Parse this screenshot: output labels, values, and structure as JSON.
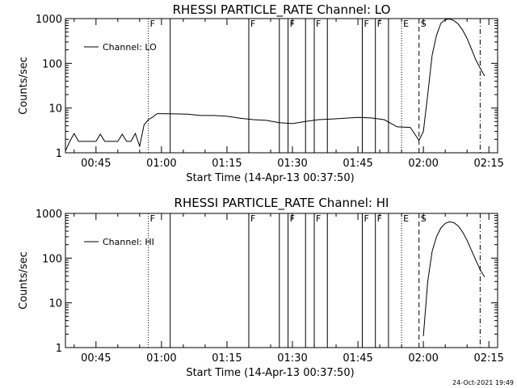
{
  "chart_data": [
    {
      "type": "line",
      "title": "RHESSI PARTICLE_RATE Channel: LO",
      "xlabel": "Start Time (14-Apr-13 00:37:50)",
      "ylabel": "Counts/sec",
      "y_scale": "log",
      "ylim": [
        1,
        1000
      ],
      "xlim": [
        "00:38",
        "02:17"
      ],
      "x_tick_labels": [
        "00:45",
        "01:00",
        "01:15",
        "01:30",
        "01:45",
        "02:00",
        "02:15"
      ],
      "y_tick_labels": [
        "1",
        "10",
        "100",
        "1000"
      ],
      "legend": {
        "label": "Channel: LO",
        "position": "top-left"
      },
      "series": [
        {
          "name": "Channel: LO",
          "x": [
            "00:38",
            "00:39",
            "00:40",
            "00:41",
            "00:42",
            "00:43",
            "00:44",
            "00:45",
            "00:46",
            "00:47",
            "00:48",
            "00:49",
            "00:50",
            "00:51",
            "00:52",
            "00:53",
            "00:54",
            "00:55",
            "00:56",
            "00:57",
            "00:58",
            "00:59",
            "01:00",
            "01:03",
            "01:06",
            "01:09",
            "01:12",
            "01:15",
            "01:18",
            "01:21",
            "01:24",
            "01:27",
            "01:30",
            "01:33",
            "01:36",
            "01:39",
            "01:42",
            "01:45",
            "01:48",
            "01:51",
            "01:54",
            "01:57",
            "01:59",
            "02:00",
            "02:01",
            "02:02",
            "02:03",
            "02:04",
            "02:05",
            "02:06",
            "02:07",
            "02:08",
            "02:09",
            "02:10",
            "02:11",
            "02:12",
            "02:13",
            "02:14"
          ],
          "values": [
            1.1,
            1.8,
            2.7,
            1.8,
            1.8,
            1.8,
            1.8,
            1.8,
            2.6,
            1.8,
            1.8,
            1.8,
            1.8,
            2.6,
            1.8,
            1.8,
            2.7,
            1.4,
            4.2,
            5.5,
            6.3,
            7.5,
            7.5,
            7.4,
            7.3,
            6.8,
            6.8,
            6.6,
            5.9,
            5.5,
            5.3,
            4.7,
            4.5,
            5.0,
            5.5,
            5.7,
            5.9,
            6.2,
            6.0,
            5.5,
            3.8,
            3.7,
            1.9,
            3.0,
            20,
            150,
            420,
            780,
            950,
            980,
            900,
            750,
            550,
            360,
            210,
            120,
            78,
            52
          ]
        }
      ],
      "annotations": [
        {
          "label": "F",
          "x": "00:57",
          "style": "dotted"
        },
        {
          "label": "",
          "x": "01:02",
          "style": "solid"
        },
        {
          "label": "F",
          "x": "01:20",
          "style": "solid"
        },
        {
          "label": "",
          "x": "01:27",
          "style": "solid"
        },
        {
          "label": "F",
          "x": "01:29",
          "style": "solid"
        },
        {
          "label": "",
          "x": "01:33",
          "style": "solid"
        },
        {
          "label": "F",
          "x": "01:35",
          "style": "solid"
        },
        {
          "label": "",
          "x": "01:38",
          "style": "solid"
        },
        {
          "label": "F",
          "x": "01:46",
          "style": "solid"
        },
        {
          "label": "F",
          "x": "01:49",
          "style": "solid"
        },
        {
          "label": "",
          "x": "01:52",
          "style": "solid"
        },
        {
          "label": "E",
          "x": "01:55",
          "style": "dotted"
        },
        {
          "label": "S",
          "x": "01:59",
          "style": "dashed"
        },
        {
          "label": "",
          "x": "02:13",
          "style": "dashdot"
        }
      ]
    },
    {
      "type": "line",
      "title": "RHESSI PARTICLE_RATE Channel: HI",
      "xlabel": "Start Time (14-Apr-13 00:37:50)",
      "ylabel": "Counts/sec",
      "y_scale": "log",
      "ylim": [
        1,
        1000
      ],
      "xlim": [
        "00:38",
        "02:17"
      ],
      "x_tick_labels": [
        "00:45",
        "01:00",
        "01:15",
        "01:30",
        "01:45",
        "02:00",
        "02:15"
      ],
      "y_tick_labels": [
        "1",
        "10",
        "100",
        "1000"
      ],
      "legend": {
        "label": "Channel: HI",
        "position": "top-left"
      },
      "series": [
        {
          "name": "Channel: HI",
          "x": [
            "02:00",
            "02:01",
            "02:02",
            "02:03",
            "02:04",
            "02:05",
            "02:06",
            "02:07",
            "02:08",
            "02:09",
            "02:10",
            "02:11",
            "02:12",
            "02:13",
            "02:14"
          ],
          "values": [
            1.8,
            30,
            140,
            300,
            470,
            600,
            650,
            620,
            520,
            380,
            250,
            150,
            90,
            55,
            38
          ]
        }
      ],
      "annotations": [
        {
          "label": "F",
          "x": "00:57",
          "style": "dotted"
        },
        {
          "label": "",
          "x": "01:02",
          "style": "solid"
        },
        {
          "label": "F",
          "x": "01:20",
          "style": "solid"
        },
        {
          "label": "",
          "x": "01:27",
          "style": "solid"
        },
        {
          "label": "F",
          "x": "01:29",
          "style": "solid"
        },
        {
          "label": "",
          "x": "01:33",
          "style": "solid"
        },
        {
          "label": "F",
          "x": "01:35",
          "style": "solid"
        },
        {
          "label": "",
          "x": "01:38",
          "style": "solid"
        },
        {
          "label": "F",
          "x": "01:46",
          "style": "solid"
        },
        {
          "label": "F",
          "x": "01:49",
          "style": "solid"
        },
        {
          "label": "",
          "x": "01:52",
          "style": "solid"
        },
        {
          "label": "E",
          "x": "01:55",
          "style": "dotted"
        },
        {
          "label": "S",
          "x": "01:59",
          "style": "dashed"
        },
        {
          "label": "",
          "x": "02:13",
          "style": "dashdot"
        }
      ]
    }
  ],
  "footer": {
    "timestamp": "24-Oct-2021 19:49"
  }
}
